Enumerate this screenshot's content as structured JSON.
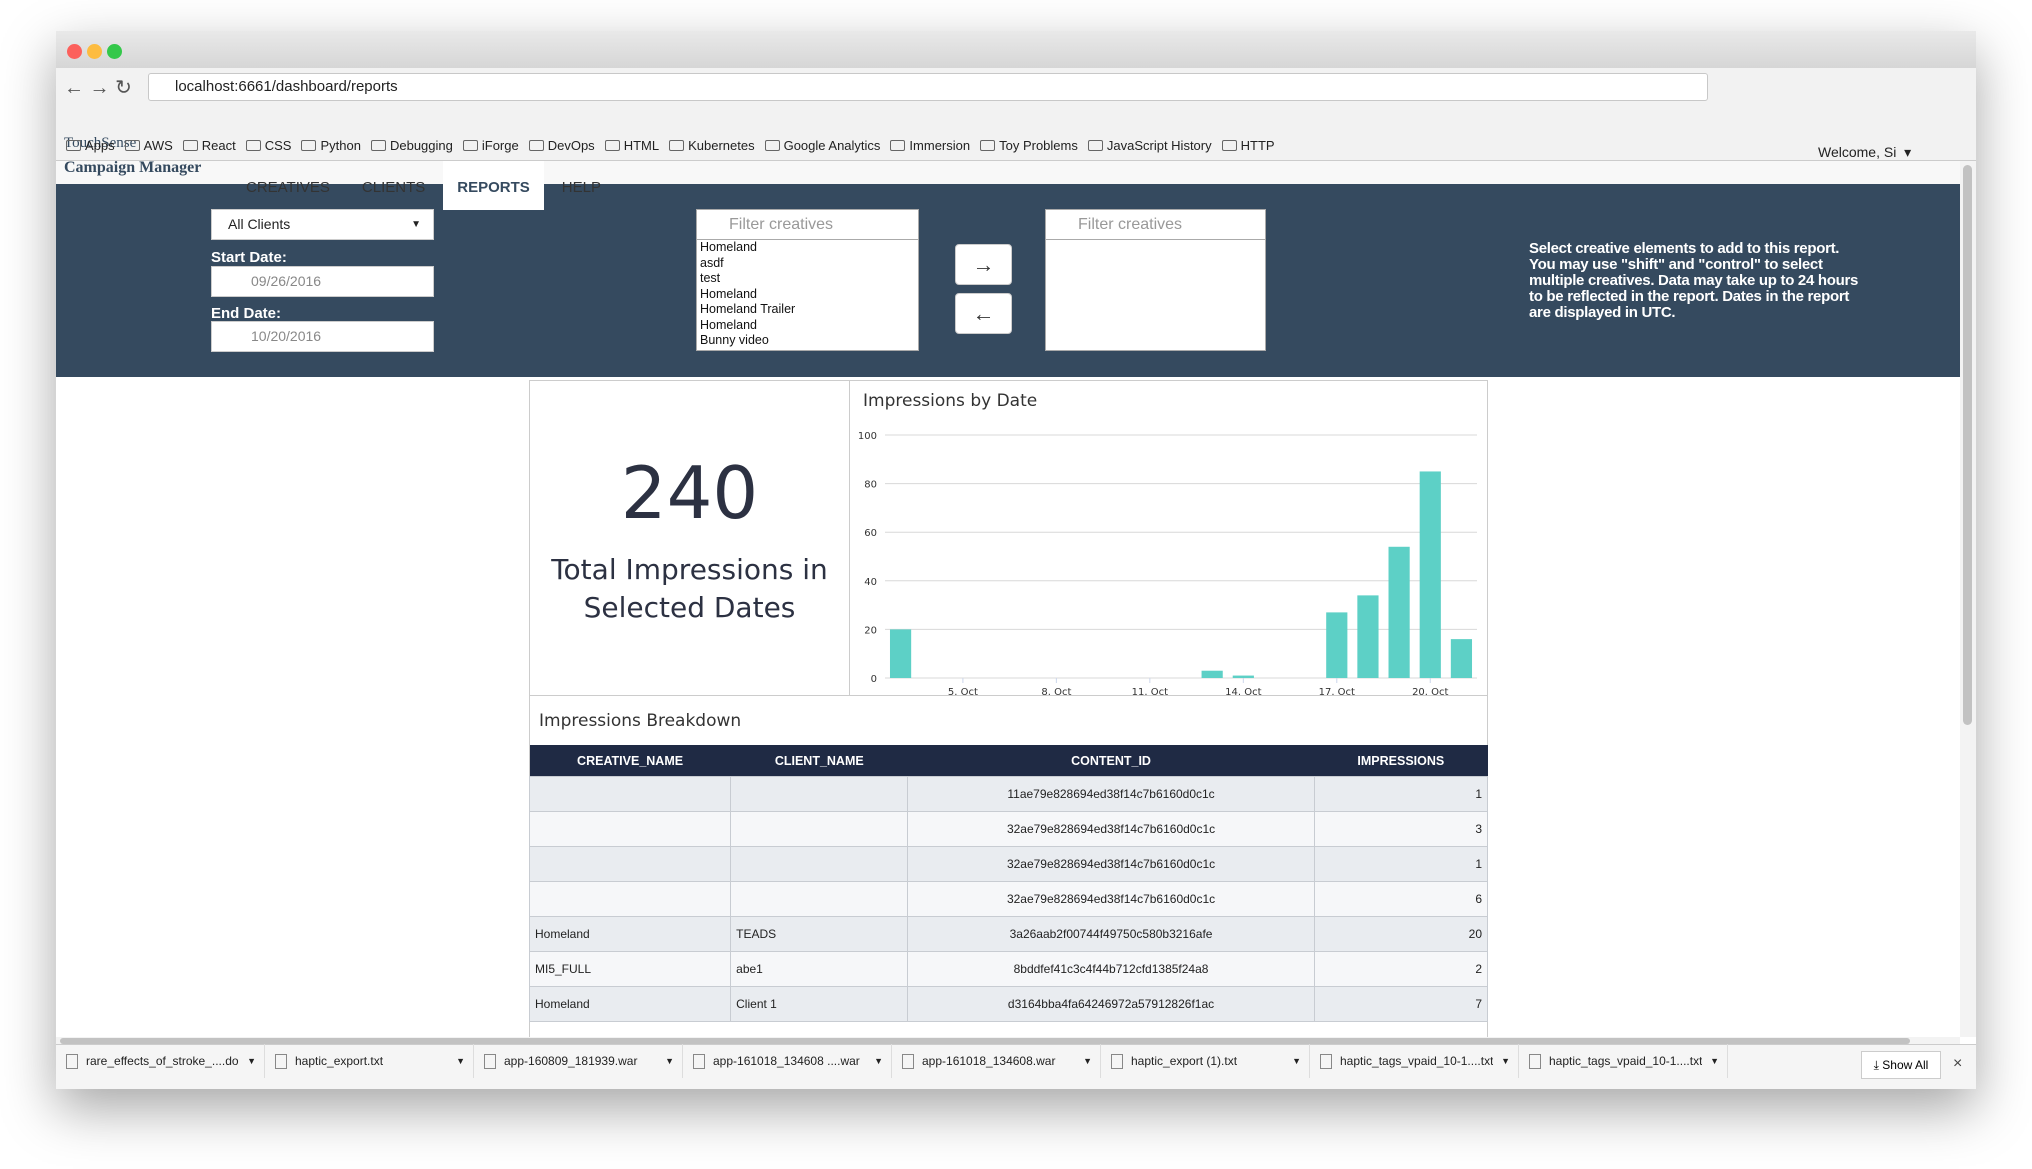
{
  "browser": {
    "url": "localhost:6661/dashboard/reports",
    "bookmarks": [
      "Apps",
      "AWS",
      "React",
      "CSS",
      "Python",
      "Debugging",
      "iForge",
      "DevOps",
      "HTML",
      "Kubernetes",
      "Google Analytics",
      "Immersion",
      "Toy Problems",
      "JavaScript History",
      "HTTP"
    ]
  },
  "app": {
    "brand_line1": "TouchSense",
    "brand_line2": "Campaign Manager",
    "nav": [
      "CREATIVES",
      "CLIENTS",
      "REPORTS",
      "HELP"
    ],
    "active_nav_index": 2,
    "user_menu": "Welcome, Si"
  },
  "filters": {
    "client_select": "All Clients",
    "start_label": "Start Date:",
    "start_date": "09/26/2016",
    "end_label": "End Date:",
    "end_date": "10/20/2016",
    "filter_placeholder": "Filter creatives",
    "available_creatives": [
      "Homeland",
      "asdf",
      "test",
      "Homeland",
      "Homeland Trailer",
      "Homeland",
      "Bunny video"
    ],
    "instructions": "Select creative elements to add to this report. You may use \"shift\" and \"control\" to select multiple creatives. Data may take up to 24 hours to be reflected in the report. Dates in the report are displayed in UTC."
  },
  "summary": {
    "total": 240,
    "label": "Total Impressions in Selected Dates"
  },
  "chart_data": {
    "type": "bar",
    "title": "Impressions by Date",
    "x": [
      3,
      13,
      14,
      17,
      18,
      19,
      20,
      21
    ],
    "values": [
      20,
      3,
      1,
      27,
      34,
      54,
      85,
      16
    ],
    "color": "#5dd0c6",
    "xlim": [
      2.5,
      21.5
    ],
    "xticks": [
      {
        "value": 5,
        "label": "5. Oct"
      },
      {
        "value": 8,
        "label": "8. Oct"
      },
      {
        "value": 11,
        "label": "11. Oct"
      },
      {
        "value": 14,
        "label": "14. Oct"
      },
      {
        "value": 17,
        "label": "17. Oct"
      },
      {
        "value": 20,
        "label": "20. Oct"
      }
    ],
    "ylim": [
      0,
      100
    ],
    "yticks": [
      0,
      20,
      40,
      60,
      80,
      100
    ],
    "grid": true
  },
  "breakdown": {
    "title": "Impressions Breakdown",
    "columns": [
      "CREATIVE_NAME",
      "CLIENT_NAME",
      "CONTENT_ID",
      "IMPRESSIONS"
    ],
    "rows": [
      [
        null,
        null,
        "11ae79e828694ed38f14c7b6160d0c1c",
        1
      ],
      [
        null,
        null,
        "32ae79e828694ed38f14c7b6160d0c1c",
        3
      ],
      [
        null,
        null,
        "32ae79e828694ed38f14c7b6160d0c1c",
        1
      ],
      [
        null,
        null,
        "32ae79e828694ed38f14c7b6160d0c1c",
        6
      ],
      [
        "Homeland",
        "TEADS",
        "3a26aab2f00744f49750c580b3216afe",
        20
      ],
      [
        "MI5_FULL",
        "abe1",
        "8bddfef41c3c4f44b712cfd1385f24a8",
        2
      ],
      [
        "Homeland",
        "Client 1",
        "d3164bba4fa64246972a57912826f1ac",
        7
      ]
    ]
  },
  "downloads": {
    "files": [
      "rare_effects_of_stroke_....doc",
      "haptic_export.txt",
      "app-160809_181939.war",
      "app-161018_134608 ....war",
      "app-161018_134608.war",
      "haptic_export (1).txt",
      "haptic_tags_vpaid_10-1....txt",
      "haptic_tags_vpaid_10-1....txt"
    ],
    "show_all": "Show All"
  }
}
